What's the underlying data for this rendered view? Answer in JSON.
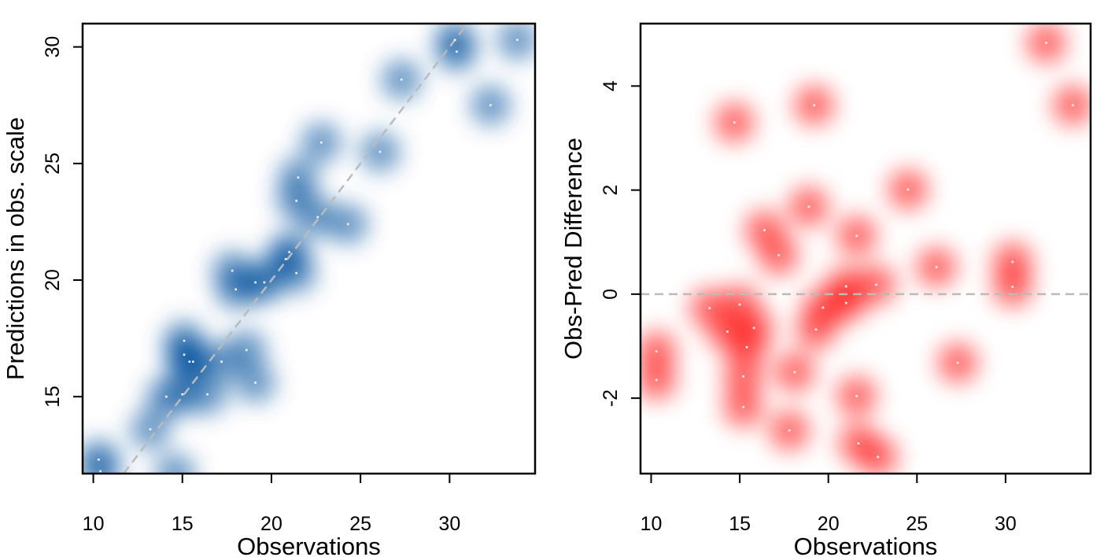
{
  "chart_data": [
    {
      "type": "scatter",
      "style": "smoothed-density",
      "xlabel": "Observations",
      "ylabel": "Predictions in obs. scale",
      "xlim": [
        9.4,
        34.8
      ],
      "ylim": [
        11.7,
        31.0
      ],
      "x_ticks": [
        "10",
        "15",
        "20",
        "25",
        "30"
      ],
      "y_ticks": [
        "15",
        "20",
        "25",
        "30"
      ],
      "color": "#08519c",
      "reference_line": {
        "type": "identity",
        "style": "dashed",
        "color": "#bbbbbb"
      },
      "points": [
        [
          10.3,
          12.3
        ],
        [
          10.4,
          11.8
        ],
        [
          13.2,
          13.6
        ],
        [
          14.1,
          15.0
        ],
        [
          14.6,
          11.7
        ],
        [
          15.1,
          17.4
        ],
        [
          15.1,
          16.8
        ],
        [
          15.4,
          16.5
        ],
        [
          15.6,
          16.5
        ],
        [
          15.0,
          15.1
        ],
        [
          16.4,
          15.1
        ],
        [
          17.2,
          16.5
        ],
        [
          17.8,
          20.4
        ],
        [
          18.0,
          19.6
        ],
        [
          18.6,
          17.0
        ],
        [
          19.1,
          15.6
        ],
        [
          19.1,
          19.9
        ],
        [
          19.6,
          19.9
        ],
        [
          20.8,
          20.9
        ],
        [
          21.0,
          21.2
        ],
        [
          21.4,
          20.3
        ],
        [
          21.4,
          23.4
        ],
        [
          21.5,
          24.4
        ],
        [
          22.6,
          22.7
        ],
        [
          22.8,
          25.9
        ],
        [
          24.3,
          22.4
        ],
        [
          26.1,
          25.5
        ],
        [
          27.3,
          28.6
        ],
        [
          30.3,
          30.3
        ],
        [
          30.4,
          29.8
        ],
        [
          32.3,
          27.5
        ],
        [
          33.8,
          30.3
        ]
      ]
    },
    {
      "type": "scatter",
      "style": "smoothed-density",
      "xlabel": "Observations",
      "ylabel": "Obs-Pred Difference",
      "xlim": [
        9.4,
        34.8
      ],
      "ylim": [
        -3.45,
        5.2
      ],
      "x_ticks": [
        "10",
        "15",
        "20",
        "25",
        "30"
      ],
      "y_ticks": [
        "-2",
        "0",
        "2",
        "4"
      ],
      "color": "#ff0000",
      "reference_line": {
        "type": "horizontal",
        "value": 0,
        "style": "dashed",
        "color": "#bbbbbb"
      },
      "points": [
        [
          10.3,
          -1.1
        ],
        [
          10.3,
          -1.65
        ],
        [
          13.3,
          -0.27
        ],
        [
          14.3,
          -0.72
        ],
        [
          14.7,
          3.3
        ],
        [
          15.0,
          -0.2
        ],
        [
          15.2,
          -1.58
        ],
        [
          15.2,
          -2.17
        ],
        [
          15.4,
          -1.02
        ],
        [
          15.8,
          -0.65
        ],
        [
          16.4,
          1.23
        ],
        [
          17.2,
          0.75
        ],
        [
          17.8,
          -2.62
        ],
        [
          18.1,
          -1.5
        ],
        [
          18.9,
          1.68
        ],
        [
          19.2,
          3.63
        ],
        [
          19.3,
          -0.68
        ],
        [
          19.7,
          -0.26
        ],
        [
          21.0,
          0.15
        ],
        [
          21.0,
          -0.17
        ],
        [
          21.6,
          1.12
        ],
        [
          21.6,
          -1.96
        ],
        [
          21.7,
          -2.87
        ],
        [
          22.7,
          0.18
        ],
        [
          22.8,
          -3.13
        ],
        [
          24.5,
          2.01
        ],
        [
          26.1,
          0.52
        ],
        [
          27.3,
          -1.32
        ],
        [
          30.4,
          0.62
        ],
        [
          30.4,
          0.14
        ],
        [
          32.3,
          4.83
        ],
        [
          33.8,
          3.63
        ]
      ]
    }
  ]
}
